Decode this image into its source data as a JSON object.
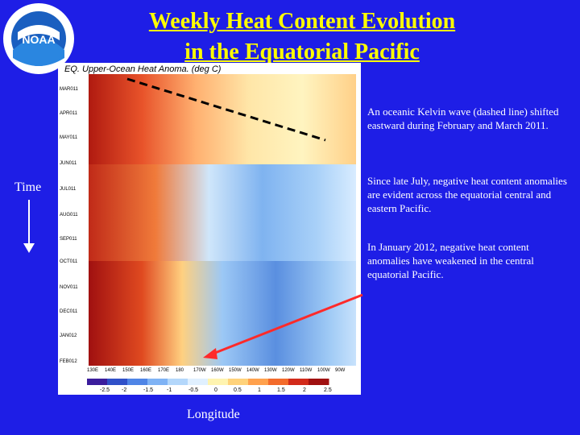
{
  "title_line1": "Weekly Heat Content Evolution",
  "title_line2": "in the Equatorial Pacific",
  "plot_title": "EQ. Upper-Ocean Heat Anoma. (deg C)",
  "logo_text": "NOAA",
  "time_label": "Time",
  "longitude_label": "Longitude",
  "notes": [
    "An oceanic Kelvin wave (dashed line) shifted eastward during February and March 2011.",
    "Since late July, negative heat content anomalies are evident across the equatorial central and eastern Pacific.",
    "In January 2012, negative heat content anomalies have weakened in the central equatorial Pacific."
  ],
  "y_ticks": [
    "MAR011",
    "APR011",
    "MAY011",
    "JUN011",
    "JUL011",
    "AUG011",
    "SEP011",
    "OCT011",
    "NOV011",
    "DEC011",
    "JAN012",
    "FEB012"
  ],
  "x_ticks": [
    "130E",
    "140E",
    "150E",
    "160E",
    "170E",
    "180",
    "170W",
    "160W",
    "150W",
    "140W",
    "130W",
    "120W",
    "110W",
    "100W",
    "90W"
  ],
  "colorbar_ticks": [
    "-2.5",
    "-2",
    "-1.5",
    "-1",
    "-0.5",
    "0",
    "0.5",
    "1",
    "1.5",
    "2",
    "2.5"
  ],
  "colorbar_colors": [
    "#3b1d9c",
    "#3050c8",
    "#4f85e6",
    "#7fb3f5",
    "#b3d7fb",
    "#e0f0ff",
    "#fff4b0",
    "#ffd27a",
    "#ffa14d",
    "#f36b2b",
    "#d22a1a",
    "#a01010"
  ],
  "arrow_color": "#ff2a2a"
}
